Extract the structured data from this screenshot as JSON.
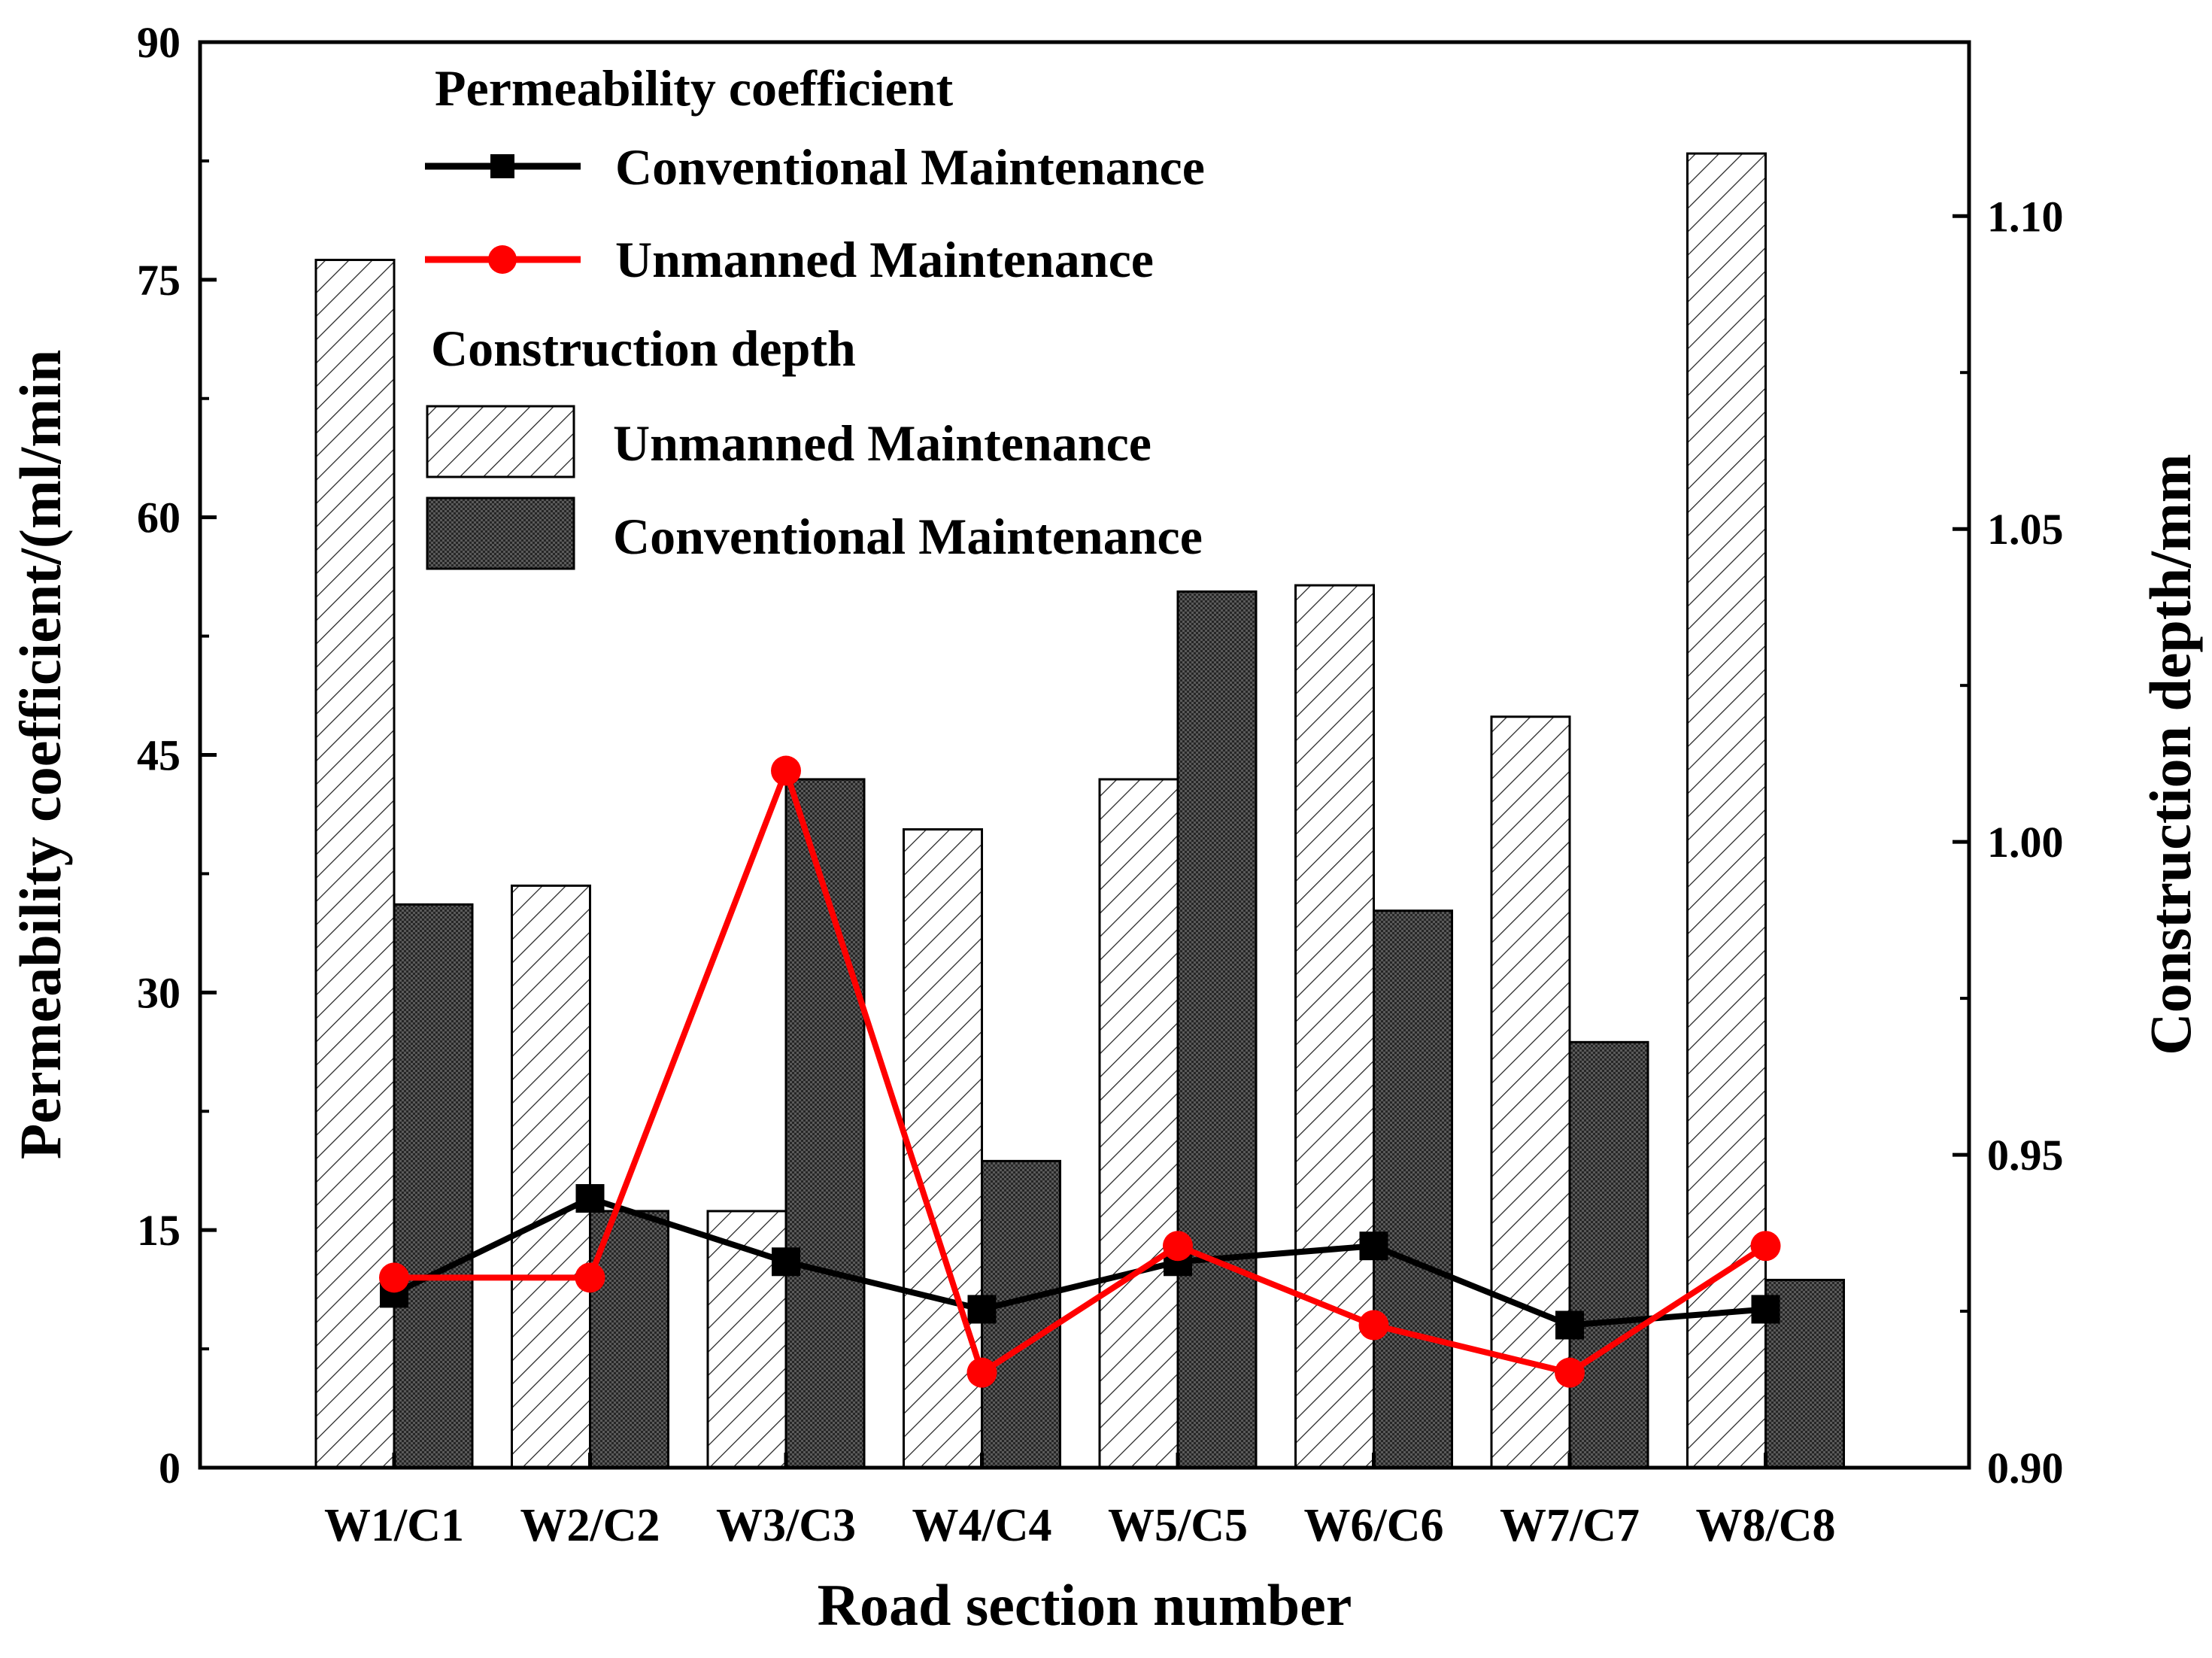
{
  "chart_data": {
    "type": "bar",
    "categories": [
      "W1/C1",
      "W2/C2",
      "W3/C3",
      "W4/C4",
      "W5/C5",
      "W6/C6",
      "W7/C7",
      "W8/C8"
    ],
    "xlabel": "Road section number",
    "ylabel_left": "Permeability coefficient/(ml/min",
    "ylabel_right": "Construction depth/mm",
    "y_left_range": [
      0,
      90
    ],
    "y_left_ticks": [
      "0",
      "15",
      "30",
      "45",
      "60",
      "75",
      "90"
    ],
    "y_right_range": [
      0.9,
      1.1278
    ],
    "y_right_ticks": [
      "0.90",
      "0.95",
      "1.00",
      "1.05",
      "1.10"
    ],
    "grid": false,
    "legend": {
      "placement": "top-left",
      "group1_title": "Permeability coefficient",
      "group2_title": "Construction depth"
    },
    "bar_series": [
      {
        "name": "Unmanned Maintenance",
        "axis": "right",
        "pattern": "hatch",
        "values": [
          1.093,
          0.993,
          0.941,
          1.002,
          1.01,
          1.041,
          1.02,
          1.11
        ]
      },
      {
        "name": "Conventional Maintenance",
        "axis": "right",
        "pattern": "dark",
        "values": [
          0.99,
          0.941,
          1.01,
          0.949,
          1.04,
          0.989,
          0.968,
          0.93
        ]
      }
    ],
    "line_series": [
      {
        "name": "Conventional Maintenance",
        "axis": "left",
        "color": "#000000",
        "marker": "square",
        "values": [
          11,
          17,
          13,
          10,
          13,
          14,
          9,
          10
        ]
      },
      {
        "name": "Unmanned Maintenance",
        "axis": "left",
        "color": "#ff0000",
        "marker": "circle",
        "values": [
          12,
          12,
          44,
          6,
          14,
          9,
          6,
          14
        ]
      }
    ]
  }
}
